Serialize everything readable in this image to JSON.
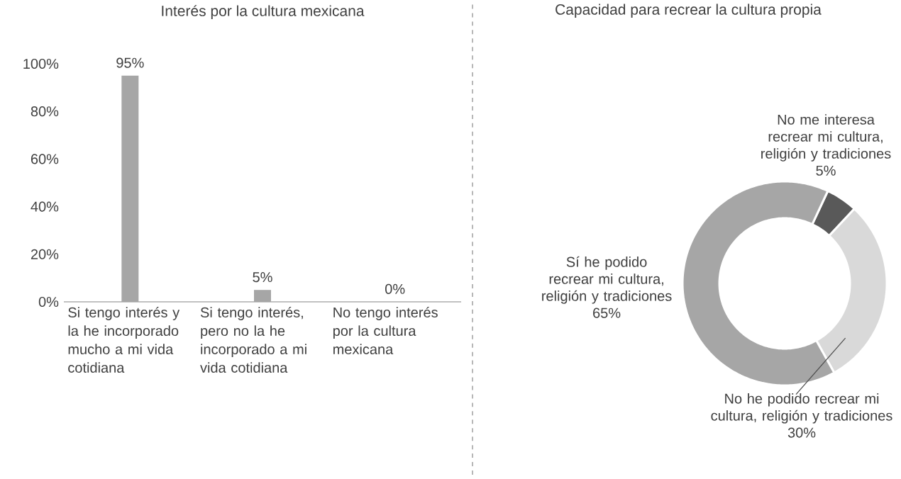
{
  "chart_data": [
    {
      "type": "bar",
      "title": "Interés por la cultura mexicana",
      "categories": [
        "Si tengo interés y la he incorporado mucho a mi vida cotidiana",
        "Si tengo interés, pero no la he incorporado a mi vida cotidiana",
        "No tengo interés por la cultura mexicana"
      ],
      "values": [
        95,
        5,
        0
      ],
      "value_labels": [
        "95%",
        "5%",
        "0%"
      ],
      "color": "#a6a6a6",
      "ylim": [
        0,
        100
      ],
      "yticks": [
        {
          "value": 0,
          "label": "0%"
        },
        {
          "value": 20,
          "label": "20%"
        },
        {
          "value": 40,
          "label": "40%"
        },
        {
          "value": 60,
          "label": "60%"
        },
        {
          "value": 80,
          "label": "80%"
        },
        {
          "value": 100,
          "label": "100%"
        }
      ]
    },
    {
      "type": "donut",
      "title": "Capacidad para recrear la cultura propia",
      "categories": [
        "No me interesa recrear mi cultura, religión y tradiciones",
        "No he podido recrear mi cultura, religión y tradiciones",
        "Sí he podido recrear mi cultura, religión y tradiciones"
      ],
      "values": [
        5,
        30,
        65
      ],
      "value_labels": [
        "5%",
        "30%",
        "65%"
      ],
      "colors": [
        "#595959",
        "#d9d9d9",
        "#a6a6a6"
      ]
    }
  ]
}
